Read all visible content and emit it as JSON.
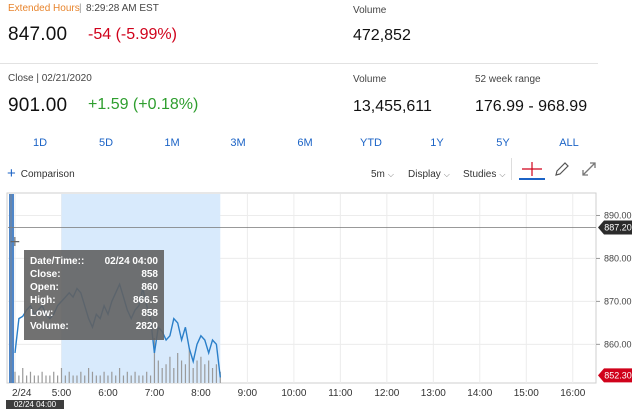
{
  "extended": {
    "label": "Extended Hours",
    "time": "8:29:28 AM EST",
    "price": "847.00",
    "change": "-54 (-5.99%)",
    "volume_label": "Volume",
    "volume": "472,852"
  },
  "close": {
    "label": "Close | 02/21/2020",
    "price": "901.00",
    "change": "+1.59 (+0.18%)",
    "volume_label": "Volume",
    "volume": "13,455,611",
    "range_label": "52 week range",
    "range": "176.99 - 968.99"
  },
  "ranges": [
    "1D",
    "5D",
    "1M",
    "3M",
    "6M",
    "YTD",
    "1Y",
    "5Y",
    "ALL"
  ],
  "toolbar": {
    "comparison": "Comparison",
    "interval": "5m",
    "display": "Display",
    "studies": "Studies"
  },
  "tooltip": {
    "datetime_label": "Date/Time::",
    "datetime": "02/24 04:00",
    "close_label": "Close:",
    "close": "858",
    "open_label": "Open:",
    "open": "860",
    "high_label": "High:",
    "high": "866.5",
    "low_label": "Low:",
    "low": "858",
    "volume_label": "Volume:",
    "volume": "2820"
  },
  "price_tags": {
    "current": "887.20",
    "last": "852.30"
  },
  "date_tag": "02/24 04:00",
  "colors": {
    "line": "#2a7fc9",
    "tag_current": "#2b2b2b",
    "tag_last": "#d0021b",
    "highlight": "#d8eafc",
    "volume": "#9a9a9a"
  },
  "chart_data": {
    "type": "line",
    "y_ticks": [
      "890.00",
      "880.00",
      "870.00",
      "860.00"
    ],
    "x_ticks": [
      "2/24",
      "5:00",
      "6:00",
      "7:00",
      "8:00",
      "9:00",
      "10:00",
      "11:00",
      "12:00",
      "13:00",
      "14:00",
      "15:00",
      "16:00"
    ],
    "ylim": [
      851,
      895
    ],
    "price": [
      [
        "04:00",
        858
      ],
      [
        "04:05",
        866
      ],
      [
        "04:10",
        866.5
      ],
      [
        "04:15",
        868
      ],
      [
        "04:20",
        869
      ],
      [
        "04:25",
        867
      ],
      [
        "04:30",
        868
      ],
      [
        "04:35",
        869
      ],
      [
        "04:40",
        867
      ],
      [
        "04:45",
        866
      ],
      [
        "04:50",
        867
      ],
      [
        "04:55",
        869
      ],
      [
        "05:00",
        870
      ],
      [
        "05:05",
        871
      ],
      [
        "05:10",
        872
      ],
      [
        "05:15",
        871
      ],
      [
        "05:20",
        873
      ],
      [
        "05:25",
        872
      ],
      [
        "05:30",
        869
      ],
      [
        "05:35",
        866
      ],
      [
        "05:40",
        864
      ],
      [
        "05:45",
        867
      ],
      [
        "05:50",
        866
      ],
      [
        "05:55",
        869
      ],
      [
        "06:00",
        867
      ],
      [
        "06:05",
        870
      ],
      [
        "06:10",
        872
      ],
      [
        "06:15",
        874
      ],
      [
        "06:20",
        871
      ],
      [
        "06:25",
        868
      ],
      [
        "06:30",
        866
      ],
      [
        "06:35",
        868
      ],
      [
        "06:40",
        869
      ],
      [
        "06:45",
        873
      ],
      [
        "06:50",
        869
      ],
      [
        "06:55",
        866
      ],
      [
        "07:00",
        858
      ],
      [
        "07:05",
        864
      ],
      [
        "07:10",
        863
      ],
      [
        "07:15",
        861
      ],
      [
        "07:20",
        862
      ],
      [
        "07:25",
        866
      ],
      [
        "07:30",
        865
      ],
      [
        "07:35",
        861
      ],
      [
        "07:40",
        864
      ],
      [
        "07:45",
        859
      ],
      [
        "07:50",
        856
      ],
      [
        "07:55",
        860
      ],
      [
        "08:00",
        862
      ],
      [
        "08:05",
        861
      ],
      [
        "08:10",
        858
      ],
      [
        "08:15",
        861
      ],
      [
        "08:20",
        860
      ],
      [
        "08:25",
        852.3
      ]
    ],
    "volume": [
      3,
      2,
      4,
      2,
      3,
      2,
      2,
      3,
      2,
      2,
      3,
      2,
      4,
      2,
      3,
      2,
      2,
      3,
      2,
      4,
      3,
      2,
      2,
      3,
      2,
      3,
      2,
      4,
      2,
      3,
      2,
      3,
      2,
      2,
      3,
      2,
      12,
      6,
      4,
      5,
      7,
      4,
      8,
      6,
      5,
      9,
      4,
      6,
      7,
      5,
      6,
      4,
      5,
      3
    ],
    "current_price": 887.2,
    "last_price": 852.3,
    "highlight_range": [
      "05:00",
      "08:25"
    ],
    "grid": true
  }
}
